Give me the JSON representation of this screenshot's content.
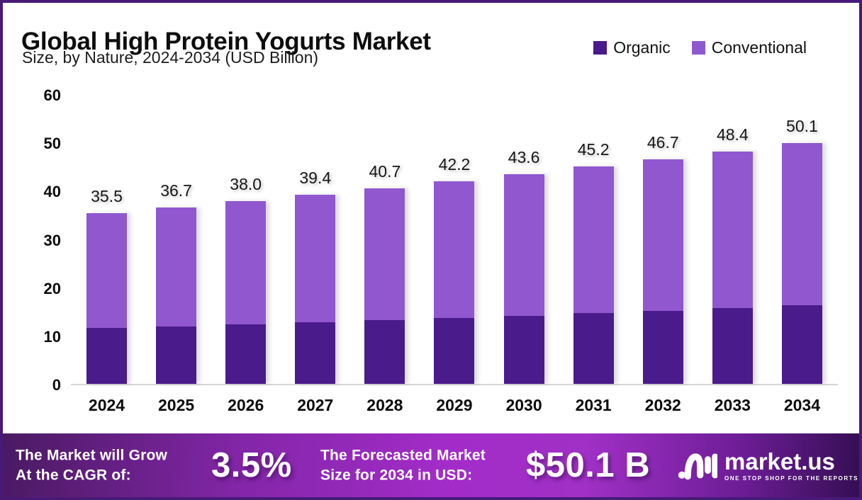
{
  "header": {
    "title": "Global High Protein Yogurts Market",
    "subtitle": "Size, by Nature, 2024-2034 (USD Billion)"
  },
  "legend": {
    "items": [
      {
        "label": "Organic",
        "color": "#4A1B8A"
      },
      {
        "label": "Conventional",
        "color": "#9057CF"
      }
    ]
  },
  "chart_data": {
    "type": "bar",
    "stacked": true,
    "title": "Global High Protein Yogurts Market Size, by Nature, 2024-2034 (USD Billion)",
    "categories": [
      "2024",
      "2025",
      "2026",
      "2027",
      "2028",
      "2029",
      "2030",
      "2031",
      "2032",
      "2033",
      "2034"
    ],
    "series": [
      {
        "name": "Organic",
        "color": "#4A1B8A",
        "values": [
          11.6,
          11.9,
          12.4,
          12.8,
          13.3,
          13.7,
          14.2,
          14.7,
          15.2,
          15.8,
          16.3
        ]
      },
      {
        "name": "Conventional",
        "color": "#9057CF",
        "values": [
          23.9,
          24.8,
          25.6,
          26.6,
          27.4,
          28.5,
          29.4,
          30.5,
          31.5,
          32.6,
          33.8
        ]
      }
    ],
    "totals": [
      35.5,
      36.7,
      38.0,
      39.4,
      40.7,
      42.2,
      43.6,
      45.2,
      46.7,
      48.4,
      50.1
    ],
    "xlabel": "",
    "ylabel": "",
    "ylim": [
      0,
      60
    ],
    "yticks": [
      0,
      10,
      20,
      30,
      40,
      50,
      60
    ],
    "grid": false,
    "legend_position": "top-right",
    "value_labels": "totals shown above bars, one decimal"
  },
  "footer": {
    "cagr_line1": "The Market will Grow",
    "cagr_line2": "At the CAGR of:",
    "cagr_value": "3.5%",
    "forecast_line1": "The Forecasted Market",
    "forecast_line2": "Size for 2034 in USD:",
    "forecast_value": "$50.1 B",
    "brand_name": "market.us",
    "brand_tagline": "ONE STOP SHOP FOR THE REPORTS"
  },
  "colors": {
    "organic": "#4A1B8A",
    "conventional": "#9057CF",
    "frame_border": "#471A78",
    "banner_gradient_left": "#4A1A62",
    "banner_gradient_mid": "#A32CC8",
    "banner_gradient_right": "#350E53",
    "axis_line": "#D7D7D7"
  }
}
